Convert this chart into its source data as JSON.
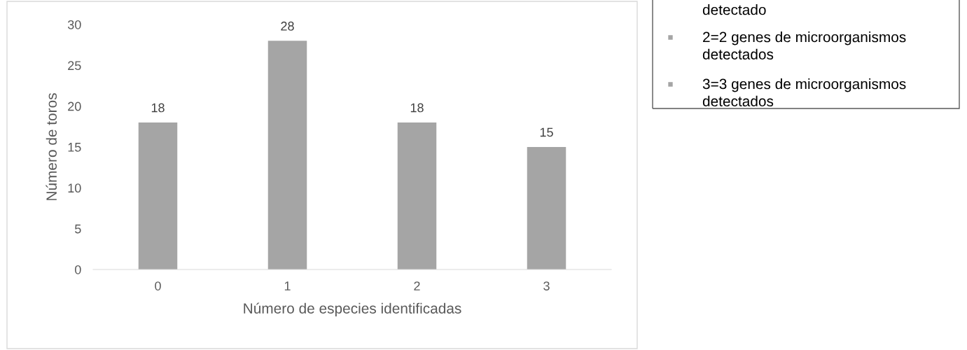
{
  "chart_data": {
    "type": "bar",
    "xlabel": "Número de especies identificadas",
    "ylabel": "Número de toros",
    "categories": [
      "0",
      "1",
      "2",
      "3"
    ],
    "values": [
      18,
      28,
      18,
      15
    ],
    "color": "#a5a5a5",
    "ylim": [
      0,
      30
    ],
    "yticks": [
      0,
      5,
      10,
      15,
      20,
      25,
      30
    ],
    "grid": false,
    "data_labels": true,
    "annotations": [
      "detectado",
      "2=2 genes de microorganismos detectados",
      "3=3 genes de microorganismos detectados"
    ]
  }
}
